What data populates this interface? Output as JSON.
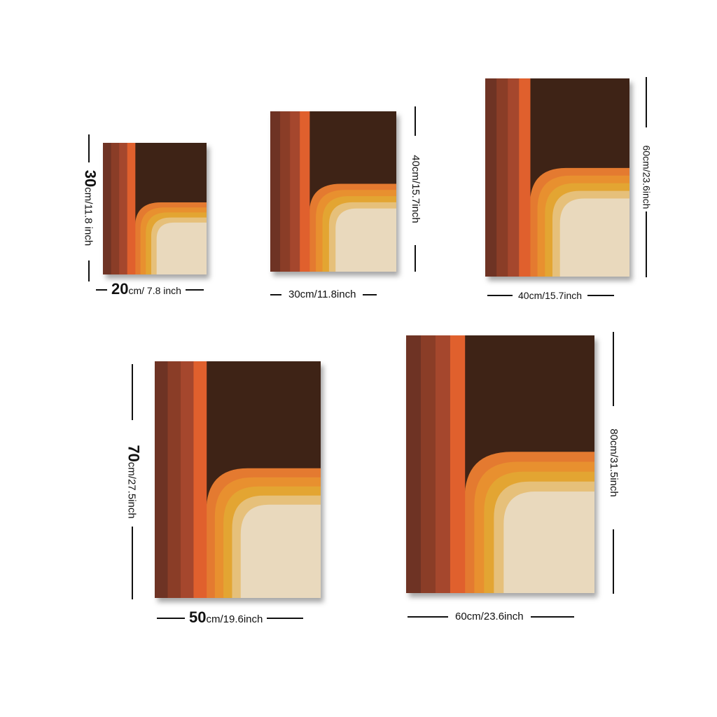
{
  "products": [
    {
      "width": {
        "num": "20",
        "rest": "cm/ 7.8 inch"
      },
      "height": {
        "num": "30",
        "rest": "cm/11.8 inch"
      }
    },
    {
      "width": {
        "num": "",
        "rest": "30cm/11.8inch"
      },
      "height": {
        "num": "",
        "rest": "40cm/15.7inch"
      }
    },
    {
      "width": {
        "num": "",
        "rest": "40cm/15.7inch"
      },
      "height": {
        "num": "",
        "rest": "60cm/23.6inch"
      }
    },
    {
      "width": {
        "num": "50",
        "rest": "cm/19.6inch"
      },
      "height": {
        "num": "70",
        "rest": "cm/27.5inch"
      }
    },
    {
      "width": {
        "num": "",
        "rest": "60cm/23.6inch"
      },
      "height": {
        "num": "",
        "rest": "80cm/31.5inch"
      }
    }
  ],
  "palette": {
    "dark_brown": "#3e2316",
    "stripe_1": "#6e3324",
    "stripe_2": "#8a3d27",
    "stripe_3": "#a5472d",
    "stripe_4": "#e0602d",
    "arc_1": "#e47a30",
    "arc_2": "#e8902f",
    "arc_3": "#e3a532",
    "arc_4": "#e6c07a",
    "cream": "#e9d9bd"
  }
}
